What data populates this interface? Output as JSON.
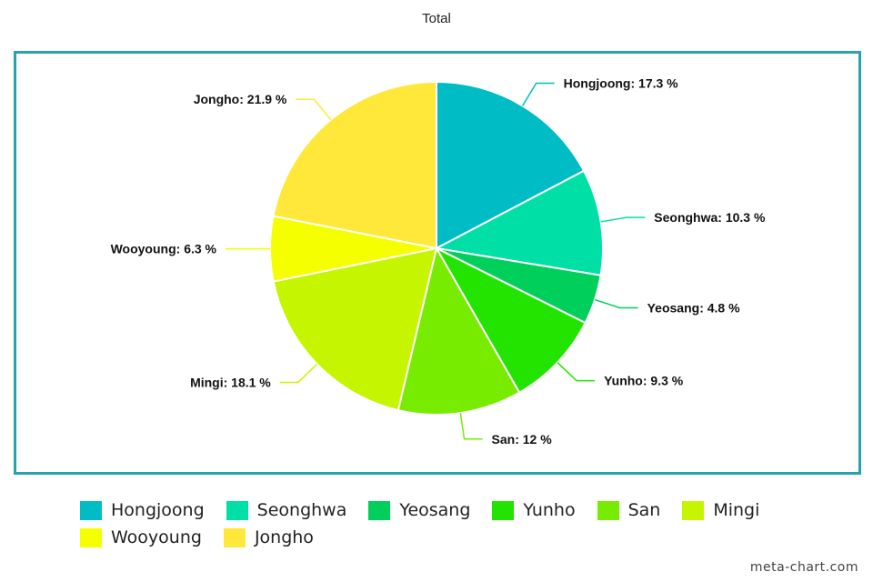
{
  "chart_data": {
    "type": "pie",
    "title": "Total",
    "unit": "%",
    "start_angle_deg": 0,
    "direction": "clockwise",
    "legend_position": "bottom",
    "slices": [
      {
        "name": "Hongjoong",
        "value": 17.3,
        "label": "Hongjoong: 17.3 %",
        "color": "#00bcc5"
      },
      {
        "name": "Seonghwa",
        "value": 10.3,
        "label": "Seonghwa: 10.3 %",
        "color": "#00e0a6"
      },
      {
        "name": "Yeosang",
        "value": 4.8,
        "label": "Yeosang: 4.8 %",
        "color": "#00d05b"
      },
      {
        "name": "Yunho",
        "value": 9.3,
        "label": "Yunho: 9.3 %",
        "color": "#22e400"
      },
      {
        "name": "San",
        "value": 12,
        "label": "San: 12 %",
        "color": "#77ec00"
      },
      {
        "name": "Mingi",
        "value": 18.1,
        "label": "Mingi: 18.1 %",
        "color": "#c6f500"
      },
      {
        "name": "Wooyoung",
        "value": 6.3,
        "label": "Wooyoung: 6.3 %",
        "color": "#f5ff00"
      },
      {
        "name": "Jongho",
        "value": 21.9,
        "label": "Jongho: 21.9 %",
        "color": "#ffe83a"
      }
    ]
  },
  "frame_color": "#26a3ad",
  "legend": {
    "items": [
      {
        "label": "Hongjoong",
        "color": "#00bcc5"
      },
      {
        "label": "Seonghwa",
        "color": "#00e0a6"
      },
      {
        "label": "Yeosang",
        "color": "#00d05b"
      },
      {
        "label": "Yunho",
        "color": "#22e400"
      },
      {
        "label": "San",
        "color": "#77ec00"
      },
      {
        "label": "Mingi",
        "color": "#c6f500"
      },
      {
        "label": "Wooyoung",
        "color": "#f5ff00"
      },
      {
        "label": "Jongho",
        "color": "#ffe83a"
      }
    ]
  },
  "watermark": "meta-chart.com"
}
